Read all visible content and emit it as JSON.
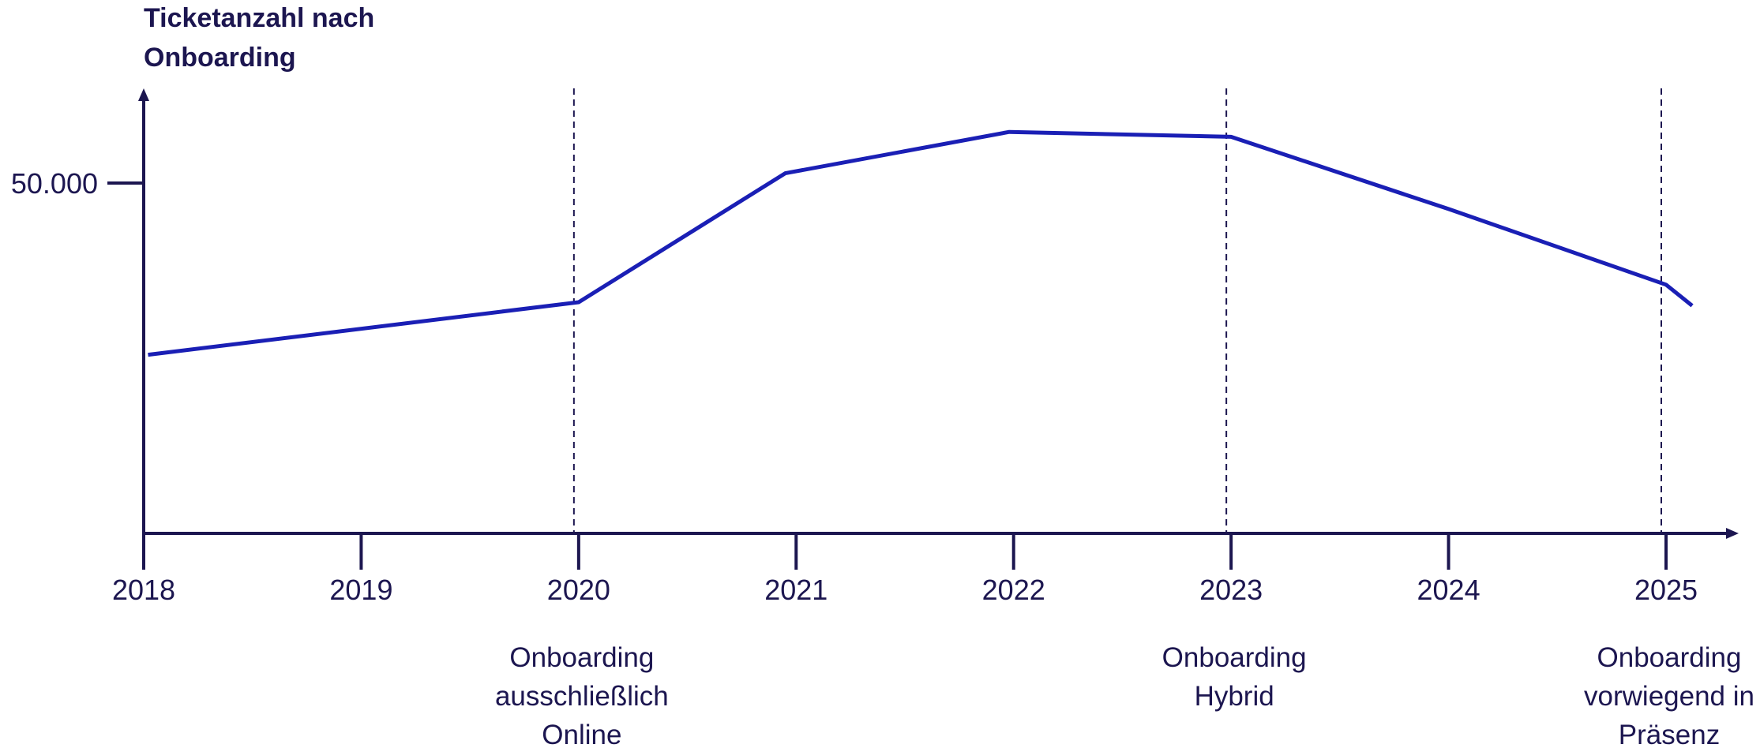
{
  "chart_data": {
    "type": "line",
    "title_lines": [
      "Ticketanzahl nach",
      "Onboarding"
    ],
    "xlabel": "",
    "ylabel": "",
    "x_ticks": [
      "2018",
      "2019",
      "2020",
      "2021",
      "2022",
      "2023",
      "2024",
      "2025"
    ],
    "y_ticks": [
      {
        "value": 50000,
        "label": "50.000"
      }
    ],
    "xlim": [
      2018,
      2025.2
    ],
    "ylim": [
      0,
      65000
    ],
    "series": [
      {
        "x": [
          2018.02,
          2020,
          2020.95,
          2021.98,
          2023,
          2024,
          2025,
          2025.12
        ],
        "y": [
          25500,
          33000,
          51400,
          57300,
          56600,
          46300,
          35500,
          32500
        ]
      }
    ],
    "annotations": [
      {
        "x": 2020,
        "lines": [
          "Onboarding",
          "ausschließlich",
          "Online"
        ]
      },
      {
        "x": 2023,
        "lines": [
          "Onboarding",
          "Hybrid"
        ]
      },
      {
        "x": 2025,
        "lines": [
          "Onboarding",
          "vorwiegend in",
          "Präsenz"
        ]
      }
    ],
    "grid": false,
    "colors": {
      "line": "#1a1fb5",
      "axis": "#1c1650",
      "text": "#1c1650"
    }
  }
}
